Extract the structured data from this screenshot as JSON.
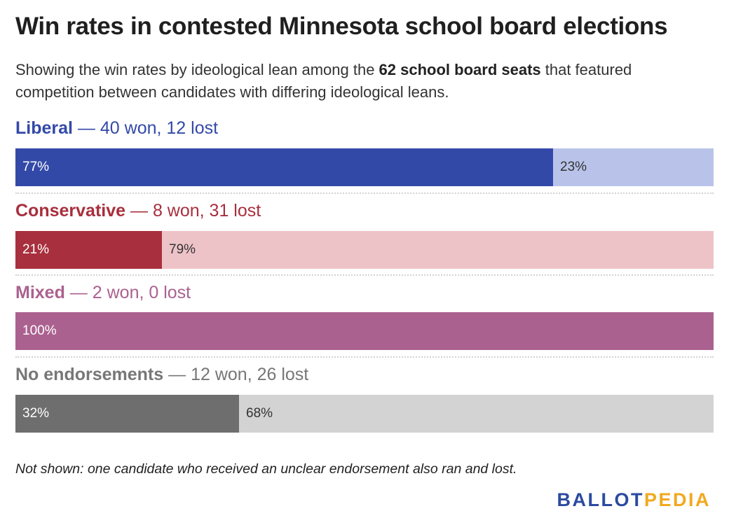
{
  "title": "Win rates in contested Minnesota school board elections",
  "subtitle": {
    "part1": "Showing the win rates by ideological lean among the ",
    "bold": "62 school board seats",
    "part2": " that featured competition between candidates with differing ideological leans."
  },
  "chart_data": {
    "type": "bar",
    "orientation": "horizontal-stacked-100",
    "title": "Win rates in contested Minnesota school board elections",
    "categories": [
      "Liberal",
      "Conservative",
      "Mixed",
      "No endorsements"
    ],
    "rows": [
      {
        "category": "Liberal",
        "summary": "40 won, 12 lost",
        "won": 77,
        "lost": 23,
        "won_label": "77%",
        "lost_label": "23%",
        "color_dark": "#3349a8",
        "color_light": "#b9c3ea",
        "label_color": "#3349a8"
      },
      {
        "category": "Conservative",
        "summary": "8 won, 31 lost",
        "won": 21,
        "lost": 79,
        "won_label": "21%",
        "lost_label": "79%",
        "color_dark": "#a82f3d",
        "color_light": "#eec3c8",
        "label_color": "#a82f3d"
      },
      {
        "category": "Mixed",
        "summary": "2 won, 0 lost",
        "won": 100,
        "lost": 0,
        "won_label": "100%",
        "lost_label": "",
        "color_dark": "#ab618f",
        "color_light": "#e8cfe0",
        "label_color": "#ab618f"
      },
      {
        "category": "No endorsements",
        "summary": "12 won, 26 lost",
        "won": 32,
        "lost": 68,
        "won_label": "32%",
        "lost_label": "68%",
        "color_dark": "#6e6e6e",
        "color_light": "#d3d3d3",
        "label_color": "#777777"
      }
    ],
    "separator": " — "
  },
  "note": "Not shown: one candidate who received an unclear endorsement also ran and lost.",
  "logo": {
    "part1": "BALLOT",
    "part2": "PEDIA",
    "color1": "#2b4aa0",
    "color2": "#f1a91f"
  }
}
